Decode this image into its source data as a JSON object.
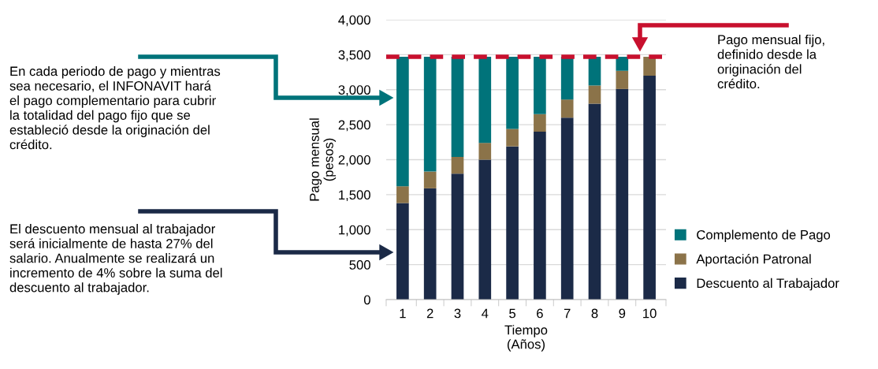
{
  "chart_data": {
    "type": "bar",
    "stacked": true,
    "xlabel": "Tiempo\n(Años)",
    "ylabel": "Pago mensual\n(pesos)",
    "categories": [
      "1",
      "2",
      "3",
      "4",
      "5",
      "6",
      "7",
      "8",
      "9",
      "10"
    ],
    "series": [
      {
        "name": "Descuento al Trabajador",
        "color": "#1b2a47",
        "values": [
          1380,
          1590,
          1800,
          2000,
          2190,
          2400,
          2600,
          2800,
          3010,
          3200
        ]
      },
      {
        "name": "Aportación Patronal",
        "color": "#8b7349",
        "values": [
          240,
          240,
          240,
          240,
          250,
          250,
          260,
          260,
          260,
          270
        ]
      },
      {
        "name": "Complemento de Pago",
        "color": "#00737a",
        "values": [
          1850,
          1640,
          1430,
          1230,
          1030,
          820,
          610,
          410,
          200,
          0
        ]
      }
    ],
    "ylim": [
      0,
      4000
    ],
    "yticks": [
      {
        "value": 0,
        "label": "0"
      },
      {
        "value": 500,
        "label": "500"
      },
      {
        "value": 1000,
        "label": "1,000"
      },
      {
        "value": 1500,
        "label": "1,500"
      },
      {
        "value": 2000,
        "label": "2,000"
      },
      {
        "value": 2500,
        "label": "2,500"
      },
      {
        "value": 3000,
        "label": "3,000"
      },
      {
        "value": 3500,
        "label": "3,500"
      },
      {
        "value": 4000,
        "label": "4,000"
      }
    ],
    "grid": "y",
    "legend": "bottom right",
    "ref_lines": [
      {
        "axis": "y",
        "value": 3470,
        "color": "#c8102e",
        "line_style": "dashed"
      }
    ],
    "annotations": [
      "En cada periodo de pago y mientras\nsea necesario, el INFONAVIT hará\nel pago complementario para cubrir\nla totalidad del pago fijo que se\nestableció desde la originación del\ncrédito.",
      "El descuento mensual al trabajador\nserá inicialmente de hasta 27% del\nsalario. Anualmente se realizará un\nincremento de 4% sobre la suma del\ndescuento al trabajador.",
      "Pago mensual fijo,\ndefinido desde la\noriginación del\ncrédito."
    ]
  }
}
